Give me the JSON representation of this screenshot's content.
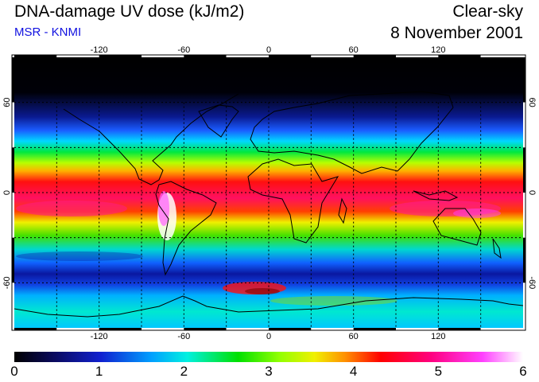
{
  "header": {
    "title": "DNA-damage UV dose (kJ/m2)",
    "subtitle": "MSR - KNMI",
    "sky": "Clear-sky",
    "date": "8 November 2001"
  },
  "map": {
    "projection": "equirectangular",
    "lon_range": [
      -180,
      180
    ],
    "lat_range": [
      -90,
      90
    ],
    "lon_ticks": [
      "-120",
      "-60",
      "0",
      "60",
      "120"
    ],
    "lat_ticks": [
      "60",
      "0",
      "-60"
    ],
    "grid_lon": [
      -150,
      -120,
      -90,
      -60,
      -30,
      0,
      30,
      60,
      90,
      120,
      150
    ],
    "grid_lat": [
      -60,
      -30,
      0,
      30,
      60
    ]
  },
  "colorbar": {
    "labels": [
      "0",
      "1",
      "2",
      "3",
      "4",
      "5",
      "6"
    ],
    "range": [
      0,
      6
    ],
    "stops": [
      "#000000",
      "#0a0a60",
      "#1020d0",
      "#00a0ff",
      "#00f0e0",
      "#00e000",
      "#90ff00",
      "#f0f000",
      "#ff9000",
      "#ff0000",
      "#ff0080",
      "#ff40ff",
      "#ffffff"
    ]
  }
}
